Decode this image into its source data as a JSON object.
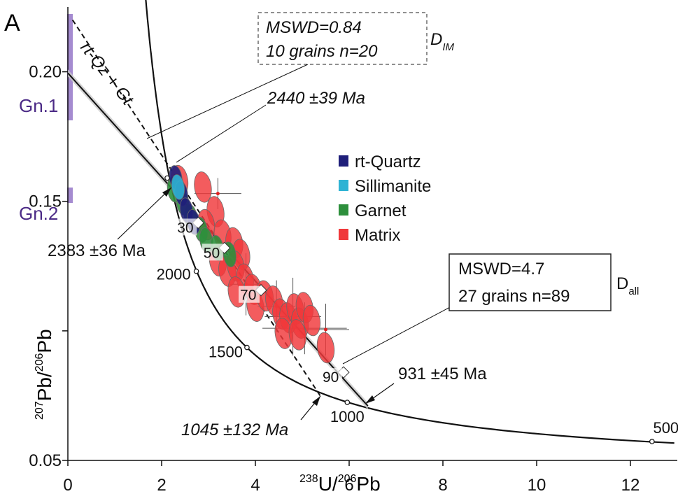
{
  "panel_label": "A",
  "chart_data": {
    "type": "scatter",
    "xlabel": {
      "sup1": "238",
      "main1": "U/",
      "sup2": "206",
      "main2": "Pb"
    },
    "ylabel": {
      "sup1": "207",
      "main1": "Pb/",
      "sup2": "206",
      "main2": "Pb"
    },
    "xlim": [
      0,
      13
    ],
    "ylim": [
      0.05,
      0.225
    ],
    "x_ticks": [
      0,
      2,
      4,
      6,
      8,
      10,
      12
    ],
    "x_tick_labels": [
      "0",
      "2",
      "4",
      "6",
      "8",
      "10",
      "12"
    ],
    "y_ticks": [
      0.05,
      0.15,
      0.2
    ],
    "y_tick_labels": [
      "0.05",
      "0.15",
      "0.20"
    ],
    "y_minor_ticks": [
      0.1
    ],
    "concordia_ages": [
      {
        "age": 2000,
        "label": "2000",
        "x": 2.74,
        "y": 0.123
      },
      {
        "age": 1500,
        "label": "1500",
        "x": 3.82,
        "y": 0.0936
      },
      {
        "age": 1000,
        "label": "1000",
        "x": 5.96,
        "y": 0.0724
      },
      {
        "age": 500,
        "label": "500",
        "x": 12.46,
        "y": 0.0573
      }
    ],
    "discordia_lines": [
      {
        "name": "D_all",
        "from": [
          0,
          0.1995
        ],
        "to": [
          6.4,
          0.071
        ],
        "style": "solid"
      },
      {
        "name": "rt-Qz + Gt",
        "from": [
          0.1,
          0.22
        ],
        "to": [
          5.4,
          0.0745
        ],
        "style": "dashed"
      }
    ],
    "mixing_markers": [
      {
        "label": "30",
        "x": 2.78,
        "y": 0.1417
      },
      {
        "label": "50",
        "x": 3.34,
        "y": 0.132
      },
      {
        "label": "70",
        "x": 4.12,
        "y": 0.1157
      },
      {
        "label": "90",
        "x": 5.88,
        "y": 0.084
      }
    ],
    "intercepts": [
      {
        "label": "2440 ±39 Ma",
        "x": 2.12,
        "y": 0.159
      },
      {
        "label": "2383 ±36 Ma",
        "x": 2.3,
        "y": 0.1546
      },
      {
        "label": "931 ±45 Ma",
        "x": 6.4,
        "y": 0.0716
      },
      {
        "label": "1045 ±132 Ma",
        "x": 5.4,
        "y": 0.0746
      }
    ],
    "series": [
      {
        "name": "rt-Quartz",
        "color": "#1f1f7a",
        "points": [
          [
            2.3,
            0.159
          ],
          [
            2.42,
            0.153
          ],
          [
            2.53,
            0.1465
          ],
          [
            2.68,
            0.142
          ]
        ]
      },
      {
        "name": "Sillimanite",
        "color": "#2fb3d4",
        "points": [
          [
            2.35,
            0.1555
          ]
        ]
      },
      {
        "name": "Garnet",
        "color": "#2d8f3c",
        "points": [
          [
            2.26,
            0.1545
          ],
          [
            2.45,
            0.1495
          ],
          [
            2.62,
            0.144
          ],
          [
            2.84,
            0.139
          ],
          [
            2.95,
            0.135
          ],
          [
            3.18,
            0.132
          ],
          [
            3.45,
            0.1295
          ]
        ]
      },
      {
        "name": "Matrix",
        "color": "#f0383a",
        "points": [
          [
            2.38,
            0.158
          ],
          [
            2.88,
            0.1555
          ],
          [
            3.15,
            0.146
          ],
          [
            2.95,
            0.141
          ],
          [
            3.3,
            0.137
          ],
          [
            3.55,
            0.134
          ],
          [
            3.7,
            0.1295
          ],
          [
            3.2,
            0.127
          ],
          [
            3.4,
            0.123
          ],
          [
            3.58,
            0.125
          ],
          [
            3.78,
            0.12
          ],
          [
            3.95,
            0.116
          ],
          [
            3.6,
            0.115
          ],
          [
            4.0,
            0.1095
          ],
          [
            4.2,
            0.1135
          ],
          [
            4.4,
            0.1115
          ],
          [
            4.55,
            0.1065
          ],
          [
            4.7,
            0.105
          ],
          [
            4.85,
            0.1085
          ],
          [
            4.95,
            0.103
          ],
          [
            5.05,
            0.109
          ],
          [
            5.2,
            0.104
          ],
          [
            4.6,
            0.099
          ],
          [
            4.9,
            0.0985
          ],
          [
            5.5,
            0.0935
          ]
        ]
      }
    ],
    "error_bar_points": [
      {
        "x": 3.2,
        "y": 0.153,
        "xerr": 0.5,
        "yerr": 0.006
      },
      {
        "x": 3.8,
        "y": 0.118,
        "xerr": 0.35,
        "yerr": 0.012
      },
      {
        "x": 4.8,
        "y": 0.1055,
        "xerr": 0.6,
        "yerr": 0.015
      },
      {
        "x": 5.05,
        "y": 0.101,
        "xerr": 0.9,
        "yerr": 0.01
      },
      {
        "x": 5.5,
        "y": 0.1005,
        "xerr": 0.5,
        "yerr": 0.01
      },
      {
        "x": 4.45,
        "y": 0.1095,
        "xerr": 0.4,
        "yerr": 0.01
      }
    ],
    "legend": [
      "rt-Quartz",
      "Sillimanite",
      "Garnet",
      "Matrix"
    ],
    "grid": false
  },
  "annotations": {
    "mswd_im": {
      "line1": "MSWD=0.84",
      "line2": "10 grains n=20",
      "tag": "D",
      "tag_sub": "IM"
    },
    "mswd_all": {
      "line1": "MSWD=4.7",
      "line2": "27 grains n=89",
      "tag": "D",
      "tag_sub": "all"
    },
    "intercept_upper_dashed": "2440 ±39 Ma",
    "intercept_upper_solid": "2383 ±36 Ma",
    "intercept_lower_solid": "931 ±45 Ma",
    "intercept_lower_dashed": "1045 ±132 Ma",
    "dashed_line_label": "rt-Qz + Gt",
    "gn1": "Gn.1",
    "gn2": "Gn.2",
    "gn_color": "#a58bd0"
  }
}
